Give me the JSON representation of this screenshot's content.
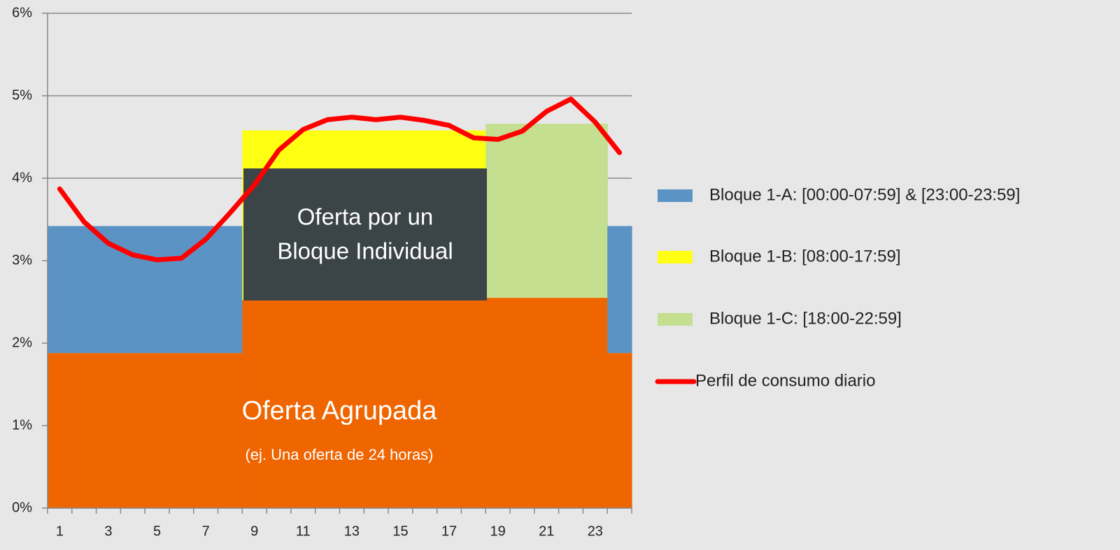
{
  "chart_data": {
    "type": "bar",
    "categories": [
      1,
      null,
      3,
      null,
      5,
      null,
      7,
      null,
      9,
      null,
      11,
      null,
      13,
      null,
      15,
      null,
      17,
      null,
      19,
      null,
      21,
      null,
      23,
      null
    ],
    "ylim": [
      0,
      6
    ],
    "yticks": [
      {
        "value": 0,
        "label": "0%"
      },
      {
        "value": 1,
        "label": "1%"
      },
      {
        "value": 2,
        "label": "2%"
      },
      {
        "value": 3,
        "label": "3%"
      },
      {
        "value": 4,
        "label": "4%"
      },
      {
        "value": 5,
        "label": "5%"
      },
      {
        "value": 6,
        "label": "6%"
      }
    ],
    "grid": true,
    "legend": "right",
    "base": {
      "color": "#ef6500",
      "values": [
        1.88,
        1.88,
        1.88,
        1.88,
        1.88,
        1.88,
        1.88,
        1.88,
        2.52,
        2.52,
        2.52,
        2.52,
        2.52,
        2.52,
        2.52,
        2.52,
        2.52,
        2.52,
        2.55,
        2.55,
        2.55,
        2.55,
        2.55,
        1.88
      ]
    },
    "series": [
      {
        "name": "Bloque 1-A: [00:00-07:59] & [23:00-23:59]",
        "type": "bar",
        "color": "#5b93c4",
        "values": [
          1.54,
          1.54,
          1.54,
          1.54,
          1.54,
          1.54,
          1.54,
          1.54,
          null,
          null,
          null,
          null,
          null,
          null,
          null,
          null,
          null,
          null,
          null,
          null,
          null,
          null,
          null,
          1.54
        ]
      },
      {
        "name": "Bloque 1-B: [08:00-17:59]",
        "type": "bar",
        "color": "#ffff14",
        "values": [
          null,
          null,
          null,
          null,
          null,
          null,
          null,
          null,
          2.06,
          2.06,
          2.06,
          2.06,
          2.06,
          2.06,
          2.06,
          2.06,
          2.06,
          2.06,
          null,
          null,
          null,
          null,
          null,
          null
        ]
      },
      {
        "name": "Bloque 1-C: [18:00-22:59]",
        "type": "bar",
        "color": "#c3df8f",
        "values": [
          null,
          null,
          null,
          null,
          null,
          null,
          null,
          null,
          null,
          null,
          null,
          null,
          null,
          null,
          null,
          null,
          null,
          null,
          2.11,
          2.11,
          2.11,
          2.11,
          2.11,
          null
        ]
      },
      {
        "name": "Perfil de consumo diario",
        "type": "line",
        "color": "#ff0000",
        "values": [
          3.87,
          3.47,
          3.21,
          3.07,
          3.01,
          3.03,
          3.26,
          3.58,
          3.92,
          4.34,
          4.59,
          4.71,
          4.74,
          4.71,
          4.74,
          4.7,
          4.64,
          4.49,
          4.47,
          4.57,
          4.81,
          4.96,
          4.68,
          4.31
        ]
      }
    ],
    "annotations": {
      "individual": [
        "Oferta por un",
        "Bloque Individual"
      ],
      "grouped": "Oferta Agrupada",
      "grouped_note": "(ej. Una oferta de 24 horas)"
    }
  }
}
